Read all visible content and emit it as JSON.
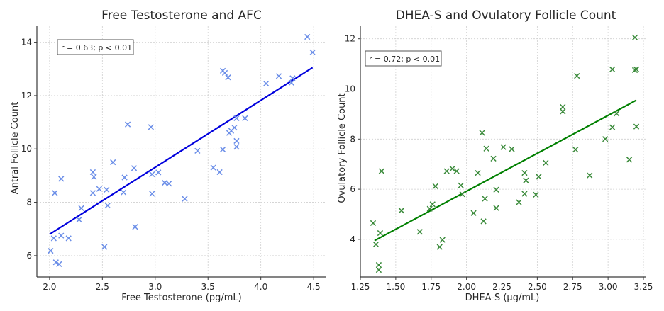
{
  "chart_data": [
    {
      "type": "scatter",
      "title": "Free Testosterone and AFC",
      "xlabel": "Free Testosterone (pg/mL)",
      "ylabel": "Antral Follicle Count",
      "xlim": [
        1.88,
        4.62
      ],
      "ylim": [
        5.2,
        14.6
      ],
      "xticks": [
        2.0,
        2.5,
        3.0,
        3.5,
        4.0,
        4.5
      ],
      "xtick_labels": [
        "2.0",
        "2.5",
        "3.0",
        "3.5",
        "4.0",
        "4.5"
      ],
      "yticks": [
        6,
        8,
        10,
        12,
        14
      ],
      "ytick_labels": [
        "6",
        "8",
        "10",
        "12",
        "14"
      ],
      "grid": true,
      "marker": "x",
      "point_color": "#6b8ee8",
      "line_color": "#0000dd",
      "annotation": "r = 0.63; p < 0.01",
      "annotation_position": "top-left",
      "regression": {
        "x": [
          2.0,
          4.49
        ],
        "y": [
          6.8,
          13.05
        ]
      },
      "points": [
        [
          2.01,
          6.18
        ],
        [
          2.04,
          6.65
        ],
        [
          2.06,
          5.75
        ],
        [
          2.09,
          5.68
        ],
        [
          2.05,
          8.35
        ],
        [
          2.11,
          8.88
        ],
        [
          2.11,
          6.75
        ],
        [
          2.18,
          6.65
        ],
        [
          2.28,
          7.35
        ],
        [
          2.3,
          7.78
        ],
        [
          2.41,
          8.35
        ],
        [
          2.41,
          9.13
        ],
        [
          2.42,
          8.95
        ],
        [
          2.47,
          8.5
        ],
        [
          2.52,
          6.33
        ],
        [
          2.54,
          8.47
        ],
        [
          2.55,
          7.88
        ],
        [
          2.6,
          9.5
        ],
        [
          2.7,
          8.37
        ],
        [
          2.71,
          8.93
        ],
        [
          2.74,
          10.92
        ],
        [
          2.8,
          9.28
        ],
        [
          2.81,
          7.08
        ],
        [
          2.96,
          10.82
        ],
        [
          2.97,
          9.05
        ],
        [
          2.97,
          8.32
        ],
        [
          3.03,
          9.12
        ],
        [
          3.09,
          8.73
        ],
        [
          3.13,
          8.7
        ],
        [
          3.28,
          8.13
        ],
        [
          3.4,
          9.93
        ],
        [
          3.55,
          9.3
        ],
        [
          3.61,
          9.13
        ],
        [
          3.64,
          12.93
        ],
        [
          3.66,
          12.85
        ],
        [
          3.64,
          9.98
        ],
        [
          3.69,
          12.68
        ],
        [
          3.7,
          10.6
        ],
        [
          3.72,
          10.68
        ],
        [
          3.75,
          10.8
        ],
        [
          3.77,
          10.08
        ],
        [
          3.77,
          10.3
        ],
        [
          3.77,
          11.15
        ],
        [
          3.85,
          11.15
        ],
        [
          4.05,
          12.45
        ],
        [
          4.17,
          12.73
        ],
        [
          4.29,
          12.48
        ],
        [
          4.3,
          12.65
        ],
        [
          4.44,
          14.2
        ],
        [
          4.49,
          13.62
        ]
      ]
    },
    {
      "type": "scatter",
      "title": "DHEA-S and Ovulatory Follicle Count",
      "xlabel": "DHEA-S (µg/mL)",
      "ylabel": "Ovulatory Follicle Count",
      "xlim": [
        1.25,
        3.27
      ],
      "ylim": [
        2.5,
        12.5
      ],
      "xticks": [
        1.25,
        1.5,
        1.75,
        2.0,
        2.25,
        2.5,
        2.75,
        3.0,
        3.25
      ],
      "xtick_labels": [
        "1.25",
        "1.50",
        "1.75",
        "2.00",
        "2.25",
        "2.50",
        "2.75",
        "3.00",
        "3.25"
      ],
      "yticks": [
        4,
        6,
        8,
        10,
        12
      ],
      "ytick_labels": [
        "4",
        "6",
        "8",
        "10",
        "12"
      ],
      "grid": true,
      "marker": "x",
      "point_color": "#3a8a3a",
      "line_color": "#008000",
      "annotation": "r = 0.72; p < 0.01",
      "annotation_position": "top-left",
      "regression": {
        "x": [
          1.35,
          3.2
        ],
        "y": [
          3.95,
          9.55
        ]
      },
      "points": [
        [
          1.34,
          4.65
        ],
        [
          1.36,
          3.8
        ],
        [
          1.38,
          2.78
        ],
        [
          1.38,
          2.98
        ],
        [
          1.39,
          4.25
        ],
        [
          1.4,
          6.72
        ],
        [
          1.54,
          5.15
        ],
        [
          1.67,
          4.3
        ],
        [
          1.74,
          5.22
        ],
        [
          1.76,
          5.4
        ],
        [
          1.78,
          6.12
        ],
        [
          1.81,
          3.7
        ],
        [
          1.83,
          3.98
        ],
        [
          1.86,
          6.72
        ],
        [
          1.9,
          6.82
        ],
        [
          1.93,
          6.72
        ],
        [
          1.96,
          6.15
        ],
        [
          1.97,
          5.8
        ],
        [
          2.05,
          5.05
        ],
        [
          2.08,
          6.65
        ],
        [
          2.11,
          8.25
        ],
        [
          2.12,
          4.72
        ],
        [
          2.13,
          5.62
        ],
        [
          2.14,
          7.62
        ],
        [
          2.19,
          7.22
        ],
        [
          2.21,
          5.98
        ],
        [
          2.21,
          5.25
        ],
        [
          2.26,
          7.68
        ],
        [
          2.32,
          7.6
        ],
        [
          2.37,
          5.48
        ],
        [
          2.41,
          6.65
        ],
        [
          2.42,
          6.35
        ],
        [
          2.41,
          5.82
        ],
        [
          2.49,
          5.78
        ],
        [
          2.51,
          6.5
        ],
        [
          2.56,
          7.05
        ],
        [
          2.68,
          9.1
        ],
        [
          2.68,
          9.28
        ],
        [
          2.77,
          7.58
        ],
        [
          2.78,
          10.52
        ],
        [
          2.87,
          6.55
        ],
        [
          2.98,
          8.0
        ],
        [
          3.03,
          8.47
        ],
        [
          3.03,
          10.78
        ],
        [
          3.06,
          9.02
        ],
        [
          3.15,
          7.18
        ],
        [
          3.19,
          12.05
        ],
        [
          3.19,
          10.75
        ],
        [
          3.2,
          10.78
        ],
        [
          3.2,
          8.5
        ]
      ]
    }
  ]
}
